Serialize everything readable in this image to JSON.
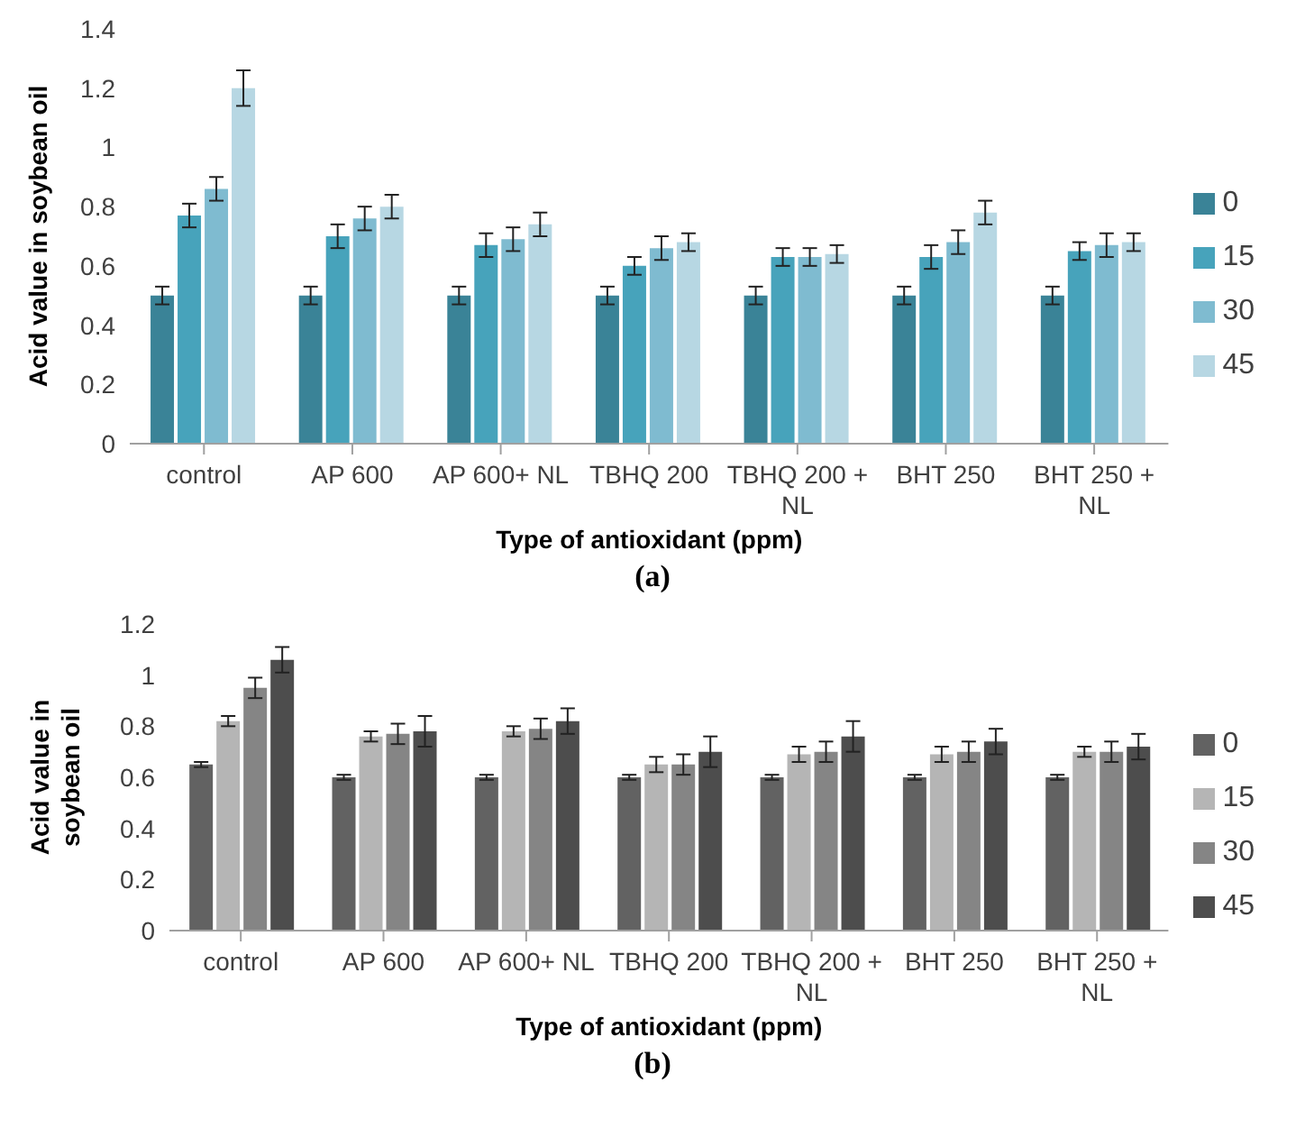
{
  "chart_data": [
    {
      "type": "bar",
      "xlabel": "Type of antioxidant (ppm)",
      "ylabel": "Acid value in soybean oil",
      "categories": [
        "control",
        "AP 600",
        "AP 600+ NL",
        "TBHQ 200",
        "TBHQ 200 + NL",
        "BHT 250",
        "BHT 250 + NL"
      ],
      "series": [
        {
          "name": "0",
          "color": "#3a8397",
          "values": [
            0.5,
            0.5,
            0.5,
            0.5,
            0.5,
            0.5,
            0.5
          ],
          "errors": [
            0.03,
            0.03,
            0.03,
            0.03,
            0.03,
            0.03,
            0.03
          ]
        },
        {
          "name": "15",
          "color": "#47a3bb",
          "values": [
            0.77,
            0.7,
            0.67,
            0.6,
            0.63,
            0.63,
            0.65
          ],
          "errors": [
            0.04,
            0.04,
            0.04,
            0.03,
            0.03,
            0.04,
            0.03
          ]
        },
        {
          "name": "30",
          "color": "#7fbbd0",
          "values": [
            0.86,
            0.76,
            0.69,
            0.66,
            0.63,
            0.68,
            0.67
          ],
          "errors": [
            0.04,
            0.04,
            0.04,
            0.04,
            0.03,
            0.04,
            0.04
          ]
        },
        {
          "name": "45",
          "color": "#b7d7e3",
          "values": [
            1.2,
            0.8,
            0.74,
            0.68,
            0.64,
            0.78,
            0.68
          ],
          "errors": [
            0.06,
            0.04,
            0.04,
            0.03,
            0.03,
            0.04,
            0.03
          ]
        }
      ],
      "ylim": [
        0,
        1.4
      ],
      "yticks": [
        0,
        0.2,
        0.4,
        0.6,
        0.8,
        1,
        1.2,
        1.4
      ],
      "legend": "right",
      "annotations": [
        "(a)"
      ]
    },
    {
      "type": "bar",
      "xlabel": "Type of antioxidant (ppm)",
      "ylabel": "Acid value in soybean oil",
      "categories": [
        "control",
        "AP 600",
        "AP 600+ NL",
        "TBHQ 200",
        "TBHQ 200 + NL",
        "BHT 250",
        "BHT 250 + NL"
      ],
      "series": [
        {
          "name": "0",
          "color": "#626262",
          "values": [
            0.65,
            0.6,
            0.6,
            0.6,
            0.6,
            0.6,
            0.6
          ],
          "errors": [
            0.01,
            0.01,
            0.01,
            0.01,
            0.01,
            0.01,
            0.01
          ]
        },
        {
          "name": "15",
          "color": "#b5b5b5",
          "values": [
            0.82,
            0.76,
            0.78,
            0.65,
            0.69,
            0.69,
            0.7
          ],
          "errors": [
            0.02,
            0.02,
            0.02,
            0.03,
            0.03,
            0.03,
            0.02
          ]
        },
        {
          "name": "30",
          "color": "#858585",
          "values": [
            0.95,
            0.77,
            0.79,
            0.65,
            0.7,
            0.7,
            0.7
          ],
          "errors": [
            0.04,
            0.04,
            0.04,
            0.04,
            0.04,
            0.04,
            0.04
          ]
        },
        {
          "name": "45",
          "color": "#4d4d4d",
          "values": [
            1.06,
            0.78,
            0.82,
            0.7,
            0.76,
            0.74,
            0.72
          ],
          "errors": [
            0.05,
            0.06,
            0.05,
            0.06,
            0.06,
            0.05,
            0.05
          ]
        }
      ],
      "ylim": [
        0,
        1.2
      ],
      "yticks": [
        0,
        0.2,
        0.4,
        0.6,
        0.8,
        1,
        1.2
      ],
      "legend": "right",
      "annotations": [
        "(b)"
      ]
    }
  ]
}
